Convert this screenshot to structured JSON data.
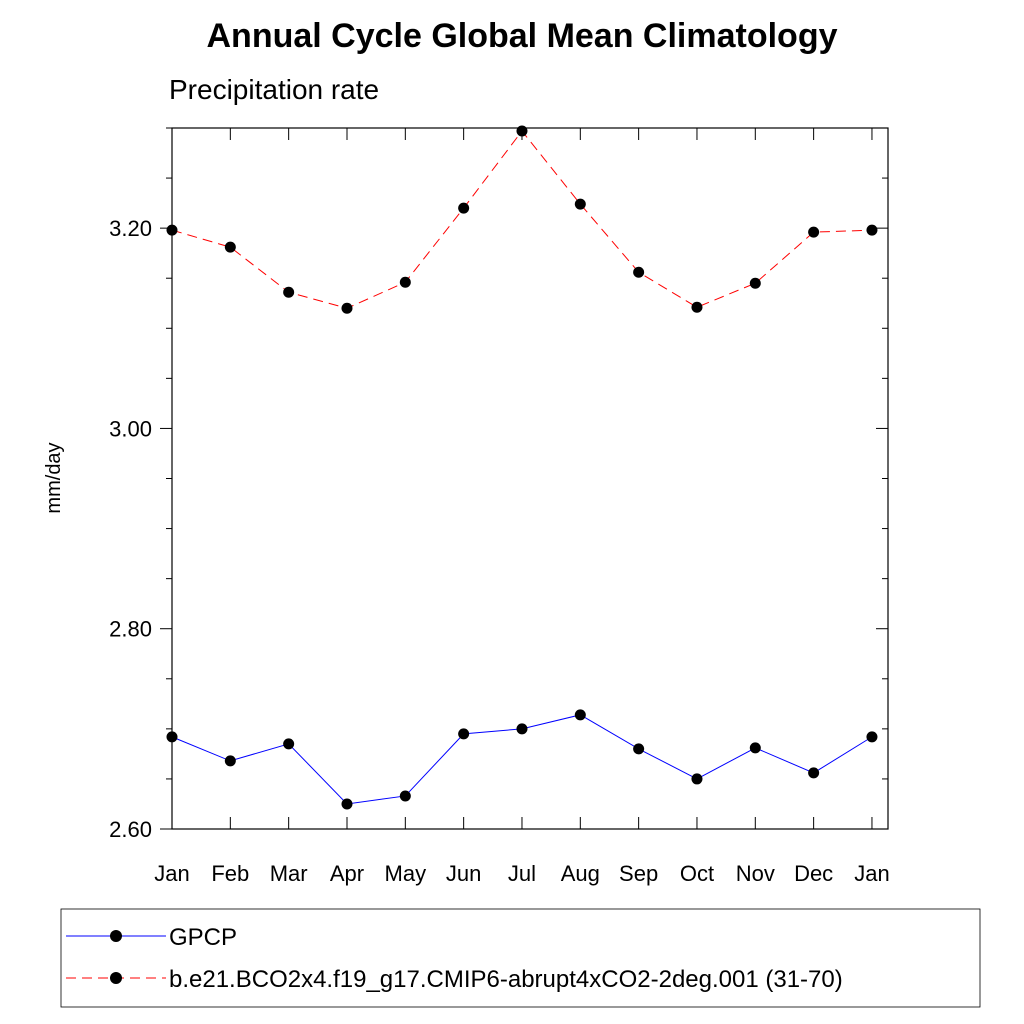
{
  "chart_data": {
    "type": "line",
    "title": "Annual Cycle Global Mean Climatology",
    "subtitle": "Precipitation rate",
    "ylabel": "mm/day",
    "xlabel": "",
    "categories": [
      "Jan",
      "Feb",
      "Mar",
      "Apr",
      "May",
      "Jun",
      "Jul",
      "Aug",
      "Sep",
      "Oct",
      "Nov",
      "Dec",
      "Jan"
    ],
    "ylim": [
      2.6,
      3.3
    ],
    "yticks": [
      "2.60",
      "2.80",
      "3.00",
      "3.20"
    ],
    "ytick_values": [
      2.6,
      2.8,
      3.0,
      3.2
    ],
    "minor_tick_step": 0.05,
    "grid": false,
    "legend_position": "bottom",
    "series": [
      {
        "name": "GPCP",
        "color": "#0000ff",
        "line_style": "solid",
        "marker": "filled-circle",
        "values": [
          2.692,
          2.668,
          2.685,
          2.625,
          2.633,
          2.695,
          2.7,
          2.714,
          2.68,
          2.65,
          2.681,
          2.656,
          2.692
        ]
      },
      {
        "name": "b.e21.BCO2x4.f19_g17.CMIP6-abrupt4xCO2-2deg.001 (31-70)",
        "color": "#ff0000",
        "line_style": "dashed",
        "marker": "filled-circle",
        "values": [
          3.198,
          3.181,
          3.136,
          3.12,
          3.146,
          3.22,
          3.297,
          3.224,
          3.156,
          3.121,
          3.145,
          3.196,
          3.198
        ]
      }
    ]
  }
}
